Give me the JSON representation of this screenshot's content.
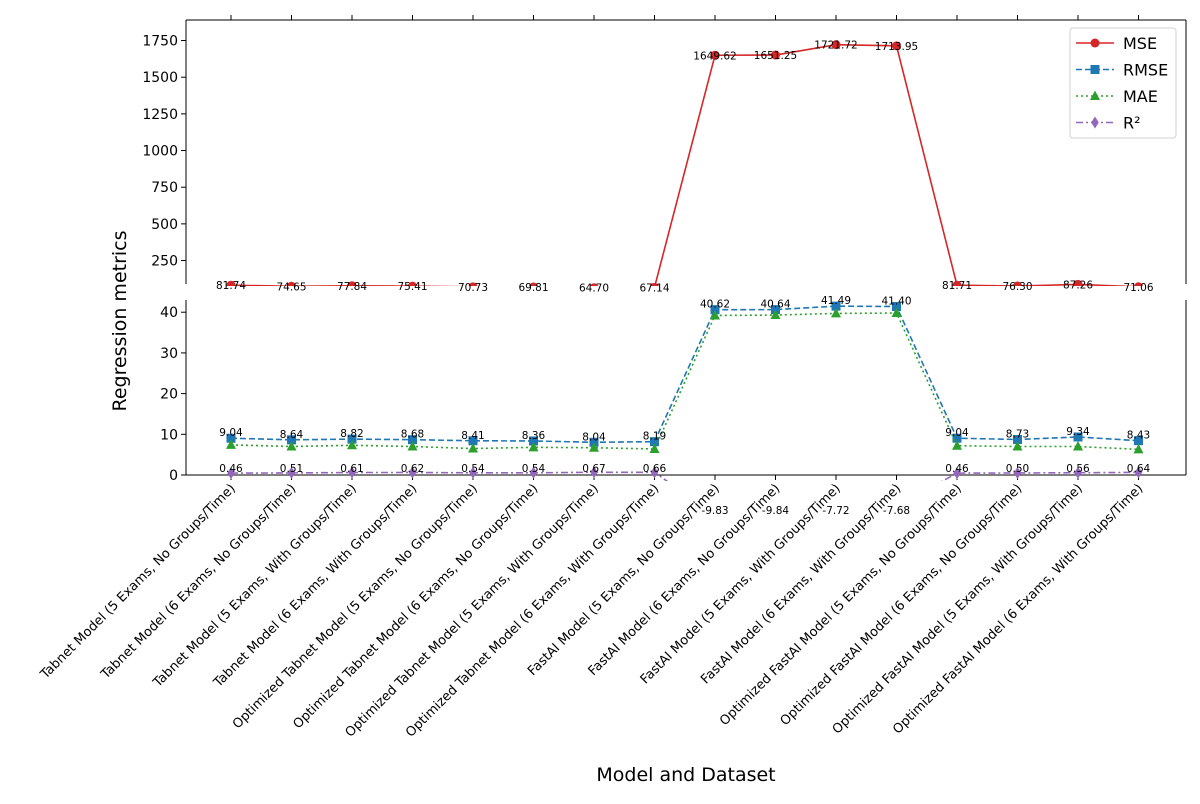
{
  "chart_data": {
    "type": "line",
    "xlabel": "Model and Dataset",
    "ylabel": "Regression metrics",
    "categories": [
      "Tabnet Model (5 Exams, No Groups/Time)",
      "Tabnet Model (6 Exams, No Groups/Time)",
      "Tabnet Model (5 Exams, With Groups/Time)",
      "Tabnet Model (6 Exams, With Groups/Time)",
      "Optimized Tabnet Model (5 Exams, No Groups/Time)",
      "Optimized Tabnet Model (6 Exams, No Groups/Time)",
      "Optimized Tabnet Model (5 Exams, With Groups/Time)",
      "Optimized Tabnet Model (6 Exams, With Groups/Time)",
      "FastAI Model (5 Exams, No Groups/Time)",
      "FastAI Model (6 Exams, No Groups/Time)",
      "FastAI Model (5 Exams, With Groups/Time)",
      "FastAI Model (6 Exams, With Groups/Time)",
      "Optimized FastAI Model (5 Exams, No Groups/Time)",
      "Optimized FastAI Model (6 Exams, No Groups/Time)",
      "Optimized FastAI Model (5 Exams, With Groups/Time)",
      "Optimized FastAI Model (6 Exams, With Groups/Time)"
    ],
    "series": [
      {
        "name": "MSE",
        "color": "#d62728",
        "marker": "circle",
        "dash": "solid",
        "values": [
          81.74,
          74.65,
          77.84,
          75.41,
          70.73,
          69.81,
          64.7,
          67.14,
          1649.62,
          1651.25,
          1721.72,
          1713.95,
          81.71,
          76.3,
          87.26,
          71.06
        ],
        "labels": [
          "81.74",
          "74.65",
          "77.84",
          "75.41",
          "70.73",
          "69.81",
          "64.70",
          "67.14",
          "1649.62",
          "1651.25",
          "1721.72",
          "1713.95",
          "81.71",
          "76.30",
          "87.26",
          "71.06"
        ]
      },
      {
        "name": "RMSE",
        "color": "#1f77b4",
        "marker": "square",
        "dash": "dashed",
        "values": [
          9.04,
          8.64,
          8.82,
          8.68,
          8.41,
          8.36,
          8.04,
          8.19,
          40.62,
          40.64,
          41.49,
          41.4,
          9.04,
          8.73,
          9.34,
          8.43
        ],
        "labels": [
          "9.04",
          "8.64",
          "8.82",
          "8.68",
          "8.41",
          "8.36",
          "8.04",
          "8.19",
          "40.62",
          "40.64",
          "41.49",
          "41.40",
          "9.04",
          "8.73",
          "9.34",
          "8.43"
        ]
      },
      {
        "name": "MAE",
        "color": "#2ca02c",
        "marker": "triangle",
        "dash": "dotted",
        "values": [
          7.4,
          7.0,
          7.3,
          7.0,
          6.5,
          6.8,
          6.7,
          6.4,
          39.2,
          39.3,
          39.7,
          39.8,
          7.2,
          7.0,
          7.0,
          6.3
        ],
        "labels": []
      },
      {
        "name": "R²",
        "color": "#9467bd",
        "marker": "diamond",
        "dash": "dashdot",
        "values": [
          0.46,
          0.51,
          0.61,
          0.62,
          0.54,
          0.54,
          0.67,
          0.66,
          -9.83,
          -9.84,
          -7.72,
          -7.68,
          0.46,
          0.5,
          0.56,
          0.64
        ],
        "labels": [
          "0.46",
          "0.51",
          "0.61",
          "0.62",
          "0.54",
          "0.54",
          "0.67",
          "0.66",
          "-9.83",
          "-9.84",
          "-7.72",
          "-7.68",
          "0.46",
          "0.50",
          "0.56",
          "0.64"
        ]
      }
    ],
    "axes": [
      {
        "part": "upper",
        "ylim": [
          90,
          1890
        ],
        "yticks": [
          250,
          500,
          750,
          1000,
          1250,
          1500,
          1750
        ],
        "ytick_labels": [
          "250",
          "500",
          "750",
          "1000",
          "1250",
          "1500",
          "1750"
        ]
      },
      {
        "part": "lower",
        "ylim": [
          0,
          43
        ],
        "yticks": [
          0,
          10,
          20,
          30,
          40
        ],
        "ytick_labels": [
          "0",
          "10",
          "20",
          "30",
          "40"
        ]
      }
    ],
    "broken_axis": true,
    "legend": "top-right",
    "grid": false
  }
}
